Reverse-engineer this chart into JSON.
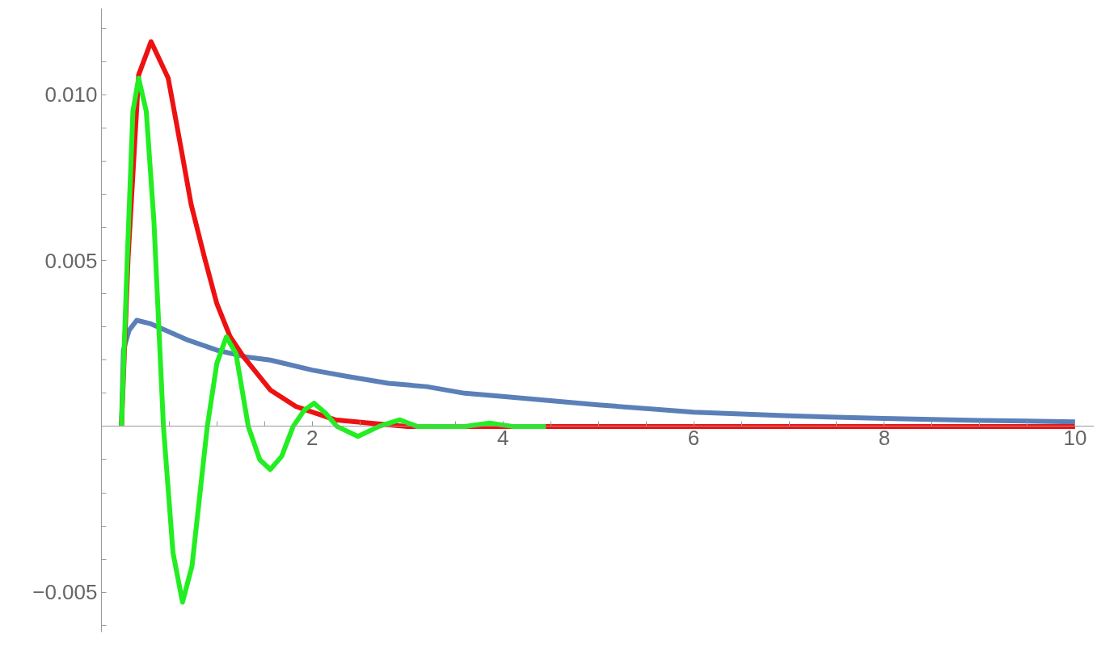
{
  "chart_data": {
    "type": "line",
    "grid": false,
    "marker": "none",
    "line_style": "solid",
    "xlim": [
      -0.21,
      10.2
    ],
    "ylim": [
      -0.0062,
      0.0126
    ],
    "xticks": [
      {
        "value": 0.5,
        "label": null
      },
      {
        "value": 1,
        "label": null
      },
      {
        "value": 1.5,
        "label": null
      },
      2,
      {
        "value": 2.5,
        "label": null
      },
      {
        "value": 3,
        "label": null
      },
      {
        "value": 3.5,
        "label": null
      },
      4,
      {
        "value": 4.5,
        "label": null
      },
      {
        "value": 5,
        "label": null
      },
      {
        "value": 5.5,
        "label": null
      },
      6,
      {
        "value": 6.5,
        "label": null
      },
      {
        "value": 7,
        "label": null
      },
      {
        "value": 7.5,
        "label": null
      },
      8,
      {
        "value": 8.5,
        "label": null
      },
      {
        "value": 9,
        "label": null
      },
      {
        "value": 9.5,
        "label": null
      },
      10
    ],
    "yticks": [
      {
        "value": -0.006,
        "label": null
      },
      {
        "value": -0.005,
        "label": "−0.005"
      },
      {
        "value": -0.004,
        "label": null
      },
      {
        "value": -0.003,
        "label": null
      },
      {
        "value": -0.002,
        "label": null
      },
      {
        "value": -0.001,
        "label": null
      },
      {
        "value": 0.001,
        "label": null
      },
      {
        "value": 0.002,
        "label": null
      },
      {
        "value": 0.003,
        "label": null
      },
      {
        "value": 0.004,
        "label": null
      },
      0.005,
      {
        "value": 0.006,
        "label": null
      },
      {
        "value": 0.007,
        "label": null
      },
      {
        "value": 0.008,
        "label": null
      },
      {
        "value": 0.009,
        "label": null
      },
      {
        "value": 0.01,
        "label": "0.010"
      },
      {
        "value": 0.011,
        "label": null
      },
      {
        "value": 0.012,
        "label": null
      }
    ],
    "series": [
      {
        "color": "#5b80b8",
        "x": [
          0,
          0.02,
          0.08,
          0.16,
          0.3,
          0.46,
          0.7,
          1.0,
          1.3,
          1.56,
          2.0,
          2.38,
          2.8,
          3.2,
          3.6,
          4.02,
          5,
          6,
          7,
          8,
          9,
          10
        ],
        "values": [
          0,
          0.0023,
          0.0029,
          0.0032,
          0.0031,
          0.0029,
          0.0026,
          0.0023,
          0.0021,
          0.002,
          0.0017,
          0.0015,
          0.0013,
          0.0012,
          0.001,
          0.0009,
          0.00065,
          0.00043,
          0.00032,
          0.00024,
          0.00018,
          0.00014
        ]
      },
      {
        "color": "#ee1111",
        "x": [
          0,
          0.07,
          0.18,
          0.31,
          0.49,
          0.63,
          0.73,
          0.87,
          1.0,
          1.14,
          1.28,
          1.56,
          1.83,
          2.24,
          2.6,
          3.0,
          4,
          5,
          6,
          7,
          8,
          9,
          10
        ],
        "values": [
          0,
          0.0051,
          0.0106,
          0.0116,
          0.0105,
          0.0083,
          0.0067,
          0.0051,
          0.0037,
          0.0027,
          0.0021,
          0.0011,
          0.0006,
          0.0002,
          0.0001,
          0,
          0,
          0,
          0,
          0,
          0,
          0,
          0
        ]
      },
      {
        "color": "#22ee22",
        "x": [
          0,
          0.06,
          0.12,
          0.18,
          0.26,
          0.34,
          0.44,
          0.54,
          0.64,
          0.74,
          0.9,
          1.0,
          1.1,
          1.2,
          1.33,
          1.45,
          1.56,
          1.68,
          1.8,
          1.92,
          2.02,
          2.14,
          2.26,
          2.48,
          2.7,
          2.92,
          3.1,
          3.37,
          3.6,
          3.86,
          4.1,
          4.45
        ],
        "values": [
          0,
          0.005,
          0.0095,
          0.0105,
          0.0095,
          0.0062,
          0,
          -0.0038,
          -0.0053,
          -0.0042,
          0,
          0.0019,
          0.0027,
          0.0022,
          0,
          -0.001,
          -0.0013,
          -0.0009,
          0,
          0.0005,
          0.0007,
          0.0004,
          0,
          -0.0003,
          0,
          0.0002,
          0,
          0,
          0,
          0.0001,
          0,
          0
        ]
      }
    ]
  }
}
